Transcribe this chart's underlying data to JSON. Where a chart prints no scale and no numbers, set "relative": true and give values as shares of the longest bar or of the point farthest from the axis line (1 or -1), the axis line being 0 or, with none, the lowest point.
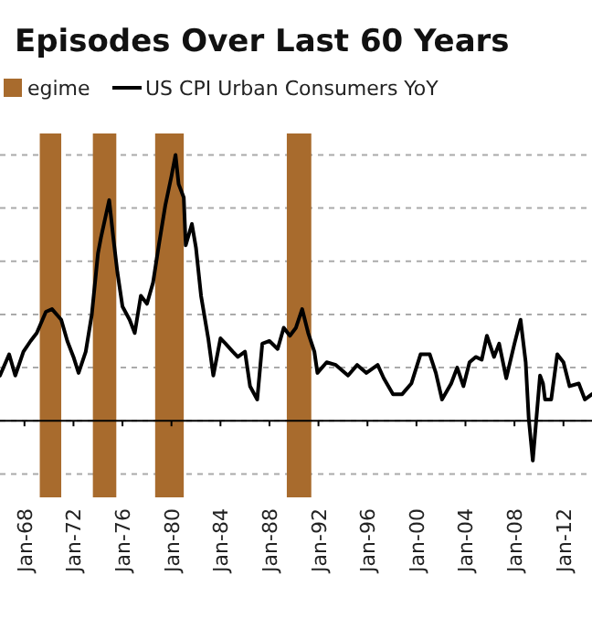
{
  "chart_data": {
    "type": "line",
    "title": "Episodes Over Last 60 Years",
    "relative": true,
    "grid": "y",
    "legend": "top left",
    "line_style": "solid",
    "xlim": [
      "1966-01",
      "2014-05"
    ],
    "xticks": [
      {
        "value": "1968-01",
        "label": "Jan-68"
      },
      {
        "value": "1972-01",
        "label": "Jan-72"
      },
      {
        "value": "1976-01",
        "label": "Jan-76"
      },
      {
        "value": "1980-01",
        "label": "Jan-80"
      },
      {
        "value": "1984-01",
        "label": "Jan-84"
      },
      {
        "value": "1988-01",
        "label": "Jan-88"
      },
      {
        "value": "1992-01",
        "label": "Jan-92"
      },
      {
        "value": "1996-01",
        "label": "Jan-96"
      },
      {
        "value": "2000-01",
        "label": "Jan-00"
      },
      {
        "value": "2004-01",
        "label": "Jan-04"
      },
      {
        "value": "2008-01",
        "label": "Jan-08"
      },
      {
        "value": "2012-01",
        "label": "Jan-12"
      }
    ],
    "bands": [
      {
        "axis": "x",
        "from": "1969-04",
        "to": "1971-01",
        "label": "egime",
        "color": "#a86b2d"
      },
      {
        "axis": "x",
        "from": "1973-08",
        "to": "1975-07",
        "color": "#a86b2d"
      },
      {
        "axis": "x",
        "from": "1978-09",
        "to": "1981-01",
        "color": "#a86b2d"
      },
      {
        "axis": "x",
        "from": "1989-06",
        "to": "1991-06",
        "color": "#a86b2d"
      }
    ],
    "x": [
      "1966-01",
      "1966-10",
      "1967-04",
      "1967-12",
      "1968-07",
      "1969-01",
      "1969-10",
      "1970-04",
      "1971-01",
      "1971-07",
      "1972-01",
      "1972-06",
      "1973-01",
      "1973-07",
      "1974-01",
      "1974-04",
      "1974-12",
      "1975-04",
      "1975-08",
      "1976-01",
      "1976-08",
      "1977-01",
      "1977-07",
      "1978-01",
      "1978-07",
      "1979-01",
      "1979-07",
      "1980-01",
      "1980-05",
      "1980-08",
      "1981-01",
      "1981-03",
      "1981-09",
      "1982-01",
      "1982-06",
      "1983-01",
      "1983-06",
      "1984-01",
      "1984-06",
      "1985-01",
      "1985-06",
      "1986-01",
      "1986-06",
      "1987-01",
      "1987-06",
      "1988-01",
      "1988-09",
      "1989-03",
      "1989-09",
      "1990-03",
      "1990-09",
      "1991-03",
      "1991-09",
      "1991-12",
      "1992-09",
      "1993-06",
      "1994-06",
      "1995-03",
      "1995-12",
      "1996-11",
      "1997-05",
      "1998-02",
      "1998-11",
      "1999-08",
      "2000-05",
      "2001-02",
      "2001-08",
      "2002-02",
      "2002-11",
      "2003-05",
      "2003-11",
      "2004-05",
      "2004-11",
      "2005-05",
      "2005-10",
      "2006-05",
      "2006-10",
      "2007-05",
      "2008-01",
      "2008-07",
      "2008-12",
      "2009-03",
      "2009-07",
      "2010-02",
      "2010-05",
      "2010-07",
      "2011-01",
      "2011-07",
      "2012-01",
      "2012-07",
      "2013-04",
      "2013-10",
      "2014-05"
    ],
    "series": [
      {
        "name": "US CPI Urban Consumers YoY",
        "color": "#000000",
        "values": [
          0.17,
          0.25,
          0.17,
          0.26,
          0.3,
          0.33,
          0.41,
          0.42,
          0.38,
          0.3,
          0.24,
          0.18,
          0.26,
          0.4,
          0.63,
          0.69,
          0.83,
          0.69,
          0.56,
          0.43,
          0.38,
          0.33,
          0.47,
          0.44,
          0.52,
          0.67,
          0.81,
          0.92,
          1,
          0.89,
          0.84,
          0.66,
          0.74,
          0.65,
          0.47,
          0.31,
          0.17,
          0.31,
          0.29,
          0.26,
          0.24,
          0.26,
          0.13,
          0.08,
          0.29,
          0.3,
          0.27,
          0.35,
          0.32,
          0.35,
          0.42,
          0.33,
          0.26,
          0.18,
          0.22,
          0.21,
          0.17,
          0.21,
          0.18,
          0.21,
          0.16,
          0.1,
          0.1,
          0.14,
          0.25,
          0.25,
          0.18,
          0.08,
          0.14,
          0.2,
          0.13,
          0.22,
          0.24,
          0.23,
          0.32,
          0.24,
          0.29,
          0.16,
          0.29,
          0.38,
          0.22,
          0.01,
          -0.15,
          0.17,
          0.14,
          0.08,
          0.08,
          0.25,
          0.22,
          0.13,
          0.14,
          0.08,
          0.1
        ]
      }
    ]
  }
}
